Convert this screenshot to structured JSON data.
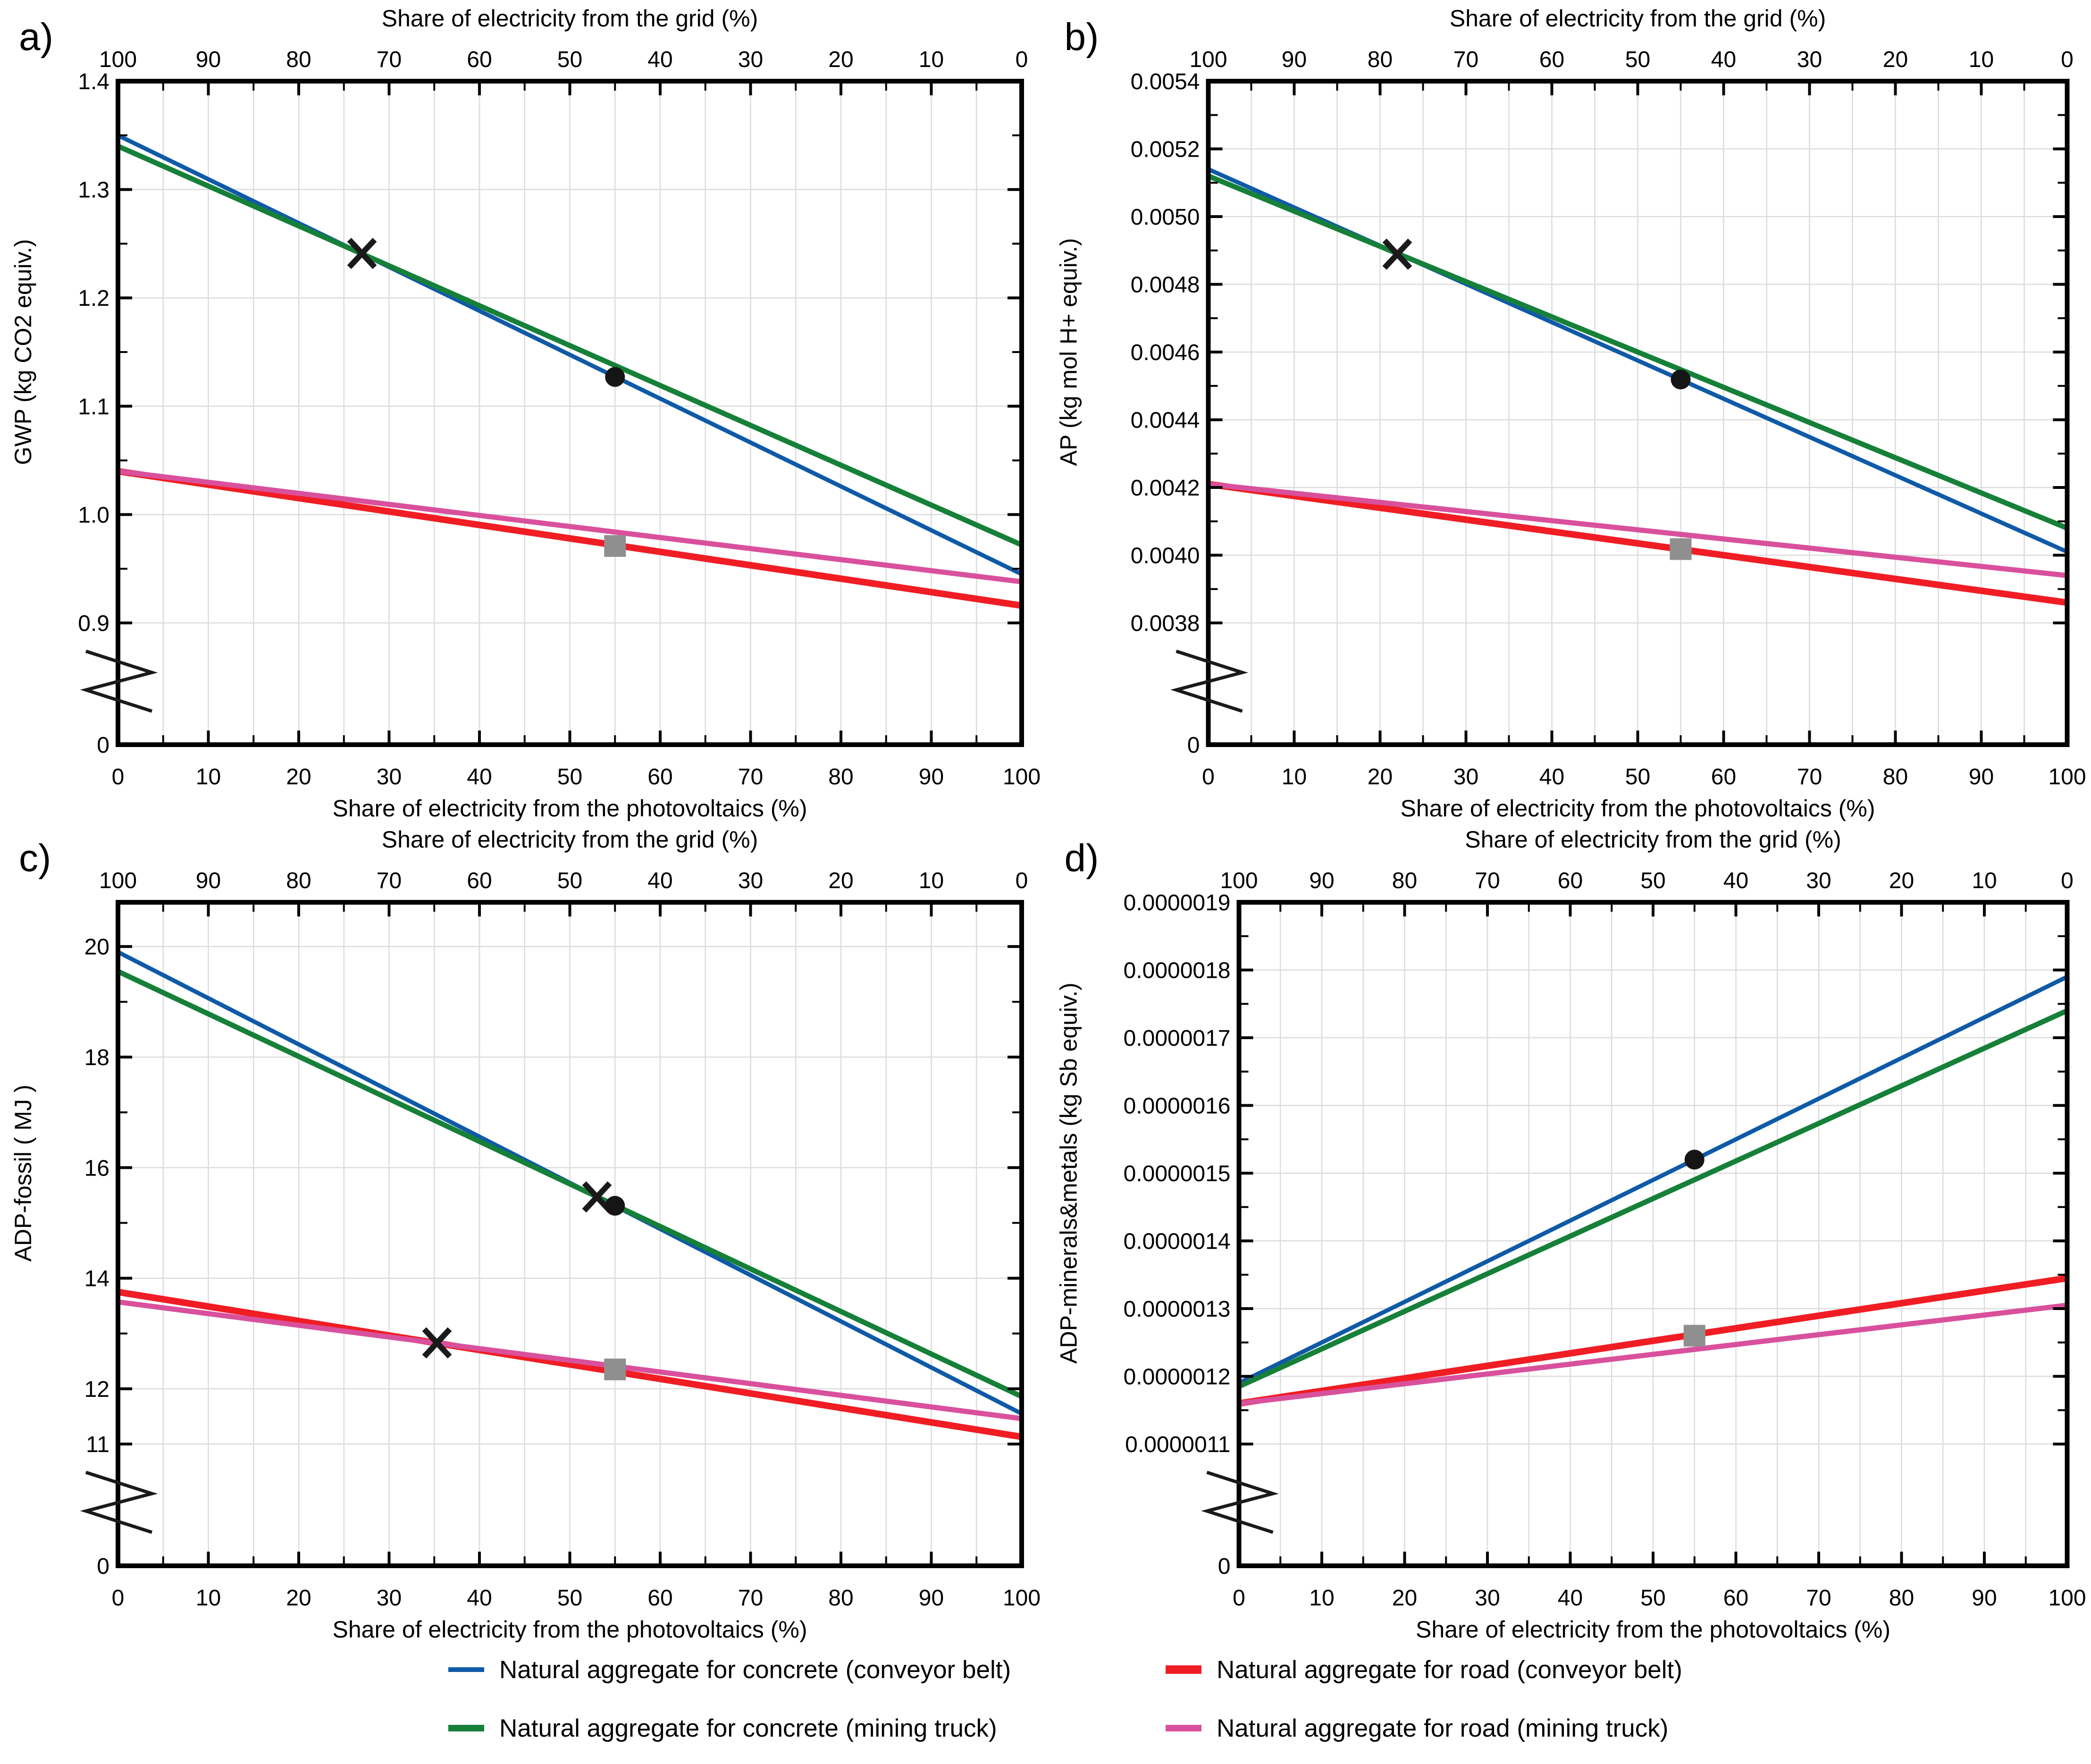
{
  "axes": {
    "top_title": "Share of electricity from the grid (%)",
    "bottom_title": "Share of electricity from the photovoltaics (%)",
    "x_ticks_bottom": [
      "0",
      "10",
      "20",
      "30",
      "40",
      "50",
      "60",
      "70",
      "80",
      "90",
      "100"
    ],
    "x_ticks_top": [
      "100",
      "90",
      "80",
      "70",
      "60",
      "50",
      "40",
      "30",
      "20",
      "10",
      "0"
    ],
    "x_minor_step": 5,
    "zero_label": "0"
  },
  "style": {
    "background": "#ffffff",
    "axis_color": "#000000",
    "grid_color": "#dcdcdc",
    "marker_dot_color": "#151515",
    "marker_square_color": "#8f8f8f",
    "marker_x_color": "#1a1a1a",
    "series_colors": {
      "concrete_conveyor": "#0f5aa8",
      "concrete_truck": "#168039",
      "road_conveyor": "#f01d24",
      "road_truck": "#d9509c"
    }
  },
  "legend": {
    "items": [
      {
        "key": "concrete_conveyor",
        "label": "Natural aggregate for concrete (conveyor belt)"
      },
      {
        "key": "concrete_truck",
        "label": "Natural aggregate for concrete (mining truck)"
      },
      {
        "key": "road_conveyor",
        "label": "Natural aggregate for road (conveyor belt)"
      },
      {
        "key": "road_truck",
        "label": "Natural aggregate for road (mining truck)"
      }
    ]
  },
  "chart_data": [
    {
      "panel": "a)",
      "type": "line",
      "ylabel": "GWP (kg CO2 equiv.)",
      "xlim": [
        0,
        100
      ],
      "y_top_value": 1.4,
      "y_break_value": 0.9,
      "y_minor_step": 0.05,
      "y_ticks": [
        {
          "v": 1.4,
          "label": "1.4"
        },
        {
          "v": 1.3,
          "label": "1.3"
        },
        {
          "v": 1.2,
          "label": "1.2"
        },
        {
          "v": 1.1,
          "label": "1.1"
        },
        {
          "v": 1.0,
          "label": "1.0"
        },
        {
          "v": 0.9,
          "label": "0.9"
        }
      ],
      "series": [
        {
          "key": "concrete_conveyor",
          "x": [
            0,
            100
          ],
          "y": [
            1.35,
            0.945
          ]
        },
        {
          "key": "concrete_truck",
          "x": [
            0,
            100
          ],
          "y": [
            1.34,
            0.972
          ]
        },
        {
          "key": "road_conveyor",
          "x": [
            0,
            100
          ],
          "y": [
            1.04,
            0.916
          ]
        },
        {
          "key": "road_truck",
          "x": [
            0,
            100
          ],
          "y": [
            1.04,
            0.938
          ]
        }
      ],
      "markers": [
        {
          "shape": "x",
          "x": 27,
          "y": 1.241
        },
        {
          "shape": "dot",
          "x": 55,
          "y": 1.127
        },
        {
          "shape": "square",
          "x": 55,
          "y": 0.971
        }
      ]
    },
    {
      "panel": "b)",
      "type": "line",
      "ylabel": "AP (kg mol H+ equiv.)",
      "xlim": [
        0,
        100
      ],
      "y_top_value": 0.0054,
      "y_break_value": 0.0038,
      "y_minor_step": 0.0001,
      "y_ticks": [
        {
          "v": 0.0054,
          "label": "0.0054"
        },
        {
          "v": 0.0052,
          "label": "0.0052"
        },
        {
          "v": 0.005,
          "label": "0.0050"
        },
        {
          "v": 0.0048,
          "label": "0.0048"
        },
        {
          "v": 0.0046,
          "label": "0.0046"
        },
        {
          "v": 0.0044,
          "label": "0.0044"
        },
        {
          "v": 0.0042,
          "label": "0.0042"
        },
        {
          "v": 0.004,
          "label": "0.0040"
        },
        {
          "v": 0.0038,
          "label": "0.0038"
        }
      ],
      "series": [
        {
          "key": "concrete_conveyor",
          "x": [
            0,
            100
          ],
          "y": [
            0.00514,
            0.00401
          ]
        },
        {
          "key": "concrete_truck",
          "x": [
            0,
            100
          ],
          "y": [
            0.00512,
            0.00408
          ]
        },
        {
          "key": "road_conveyor",
          "x": [
            0,
            100
          ],
          "y": [
            0.00421,
            0.00386
          ]
        },
        {
          "key": "road_truck",
          "x": [
            0,
            100
          ],
          "y": [
            0.00421,
            0.00394
          ]
        }
      ],
      "markers": [
        {
          "shape": "x",
          "x": 22,
          "y": 0.004889
        },
        {
          "shape": "dot",
          "x": 55,
          "y": 0.004519
        },
        {
          "shape": "square",
          "x": 55,
          "y": 0.004018
        }
      ]
    },
    {
      "panel": "c)",
      "type": "line",
      "ylabel": "ADP-fossil ( MJ )",
      "xlim": [
        0,
        100
      ],
      "y_top_value": 20.8,
      "y_break_value": 11,
      "y_minor_step": 1,
      "y_ticks": [
        {
          "v": 20,
          "label": "20"
        },
        {
          "v": 18,
          "label": "18"
        },
        {
          "v": 16,
          "label": "16"
        },
        {
          "v": 14,
          "label": "14"
        },
        {
          "v": 12,
          "label": "12"
        },
        {
          "v": 11,
          "label": "11"
        }
      ],
      "series": [
        {
          "key": "concrete_conveyor",
          "x": [
            0,
            100
          ],
          "y": [
            19.9,
            11.55
          ]
        },
        {
          "key": "concrete_truck",
          "x": [
            0,
            100
          ],
          "y": [
            19.55,
            11.86
          ]
        },
        {
          "key": "road_conveyor",
          "x": [
            0,
            100
          ],
          "y": [
            13.75,
            11.13
          ]
        },
        {
          "key": "road_truck",
          "x": [
            0,
            100
          ],
          "y": [
            13.57,
            11.46
          ]
        }
      ],
      "markers": [
        {
          "shape": "x",
          "x": 53,
          "y": 15.47
        },
        {
          "shape": "dot",
          "x": 55,
          "y": 15.31
        },
        {
          "shape": "x",
          "x": 35.3,
          "y": 12.83
        },
        {
          "shape": "square",
          "x": 55,
          "y": 12.35
        }
      ]
    },
    {
      "panel": "d)",
      "type": "line",
      "ylabel": "ADP-minerals&metals (kg Sb equiv.)",
      "xlim": [
        0,
        100
      ],
      "y_top_value": 1.9e-06,
      "y_break_value": 1.1e-06,
      "y_minor_step": 5e-08,
      "y_ticks": [
        {
          "v": 1.9e-06,
          "label": "0.0000019"
        },
        {
          "v": 1.8e-06,
          "label": "0.0000018"
        },
        {
          "v": 1.7e-06,
          "label": "0.0000017"
        },
        {
          "v": 1.6e-06,
          "label": "0.0000016"
        },
        {
          "v": 1.5e-06,
          "label": "0.0000015"
        },
        {
          "v": 1.4e-06,
          "label": "0.0000014"
        },
        {
          "v": 1.3e-06,
          "label": "0.0000013"
        },
        {
          "v": 1.2e-06,
          "label": "0.0000012"
        },
        {
          "v": 1.1e-06,
          "label": "0.0000011"
        }
      ],
      "series": [
        {
          "key": "concrete_conveyor",
          "x": [
            0,
            100
          ],
          "y": [
            1.19e-06,
            1.79e-06
          ]
        },
        {
          "key": "concrete_truck",
          "x": [
            0,
            100
          ],
          "y": [
            1.185e-06,
            1.74e-06
          ]
        },
        {
          "key": "road_conveyor",
          "x": [
            0,
            100
          ],
          "y": [
            1.16e-06,
            1.345e-06
          ]
        },
        {
          "key": "road_truck",
          "x": [
            0,
            100
          ],
          "y": [
            1.16e-06,
            1.305e-06
          ]
        }
      ],
      "markers": [
        {
          "shape": "dot",
          "x": 55,
          "y": 1.52e-06
        },
        {
          "shape": "square",
          "x": 55,
          "y": 1.26e-06
        }
      ]
    }
  ]
}
